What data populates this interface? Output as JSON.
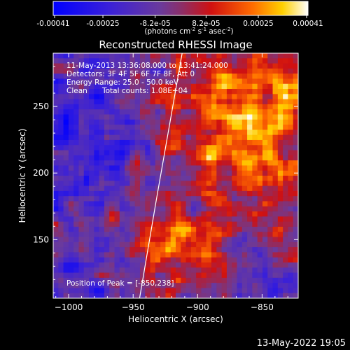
{
  "colorbar": {
    "ticks": [
      "-0.00041",
      "-0.00025",
      "-8.2e-05",
      "8.2e-05",
      "0.00025",
      "0.00041"
    ],
    "tick_values": [
      -0.00041,
      -0.00025,
      -8.2e-05,
      8.2e-05,
      0.00025,
      0.00041
    ],
    "range": [
      -0.00041,
      0.00041
    ],
    "units_label": "(photons cm",
    "units_sup1": "-2",
    "units_mid1": " s",
    "units_sup2": "-1",
    "units_mid2": " asec",
    "units_sup3": "-2",
    "units_end": ")"
  },
  "chart_data": {
    "type": "heatmap",
    "title": "Reconstructed RHESSI Image",
    "xlabel": "Heliocentric X (arcsec)",
    "ylabel": "Heliocentric Y (arcsec)",
    "xlim": [
      -1012,
      -822
    ],
    "ylim": [
      106,
      290
    ],
    "x_ticks": [
      -1000,
      -950,
      -900,
      -850
    ],
    "y_ticks": [
      150,
      200,
      250
    ],
    "annotations": {
      "time_range": "11-May-2013 13:36:08.000 to 13:41:24.000",
      "detectors": "Detectors: 3F 4F 5F 6F 7F 8F, Att 0",
      "energy": "Energy Range: 25.0 - 50.0 keV",
      "clean": "Clean",
      "counts": "Total counts: 1.08E+04",
      "peak": "Position of Peak = [-850,238]"
    },
    "limb_line": [
      [
        -945,
        106
      ],
      [
        -932,
        180
      ],
      [
        -912,
        290
      ]
    ],
    "peak_position": [
      -850,
      238
    ]
  },
  "footer": {
    "date": "13-May-2022 19:05"
  }
}
